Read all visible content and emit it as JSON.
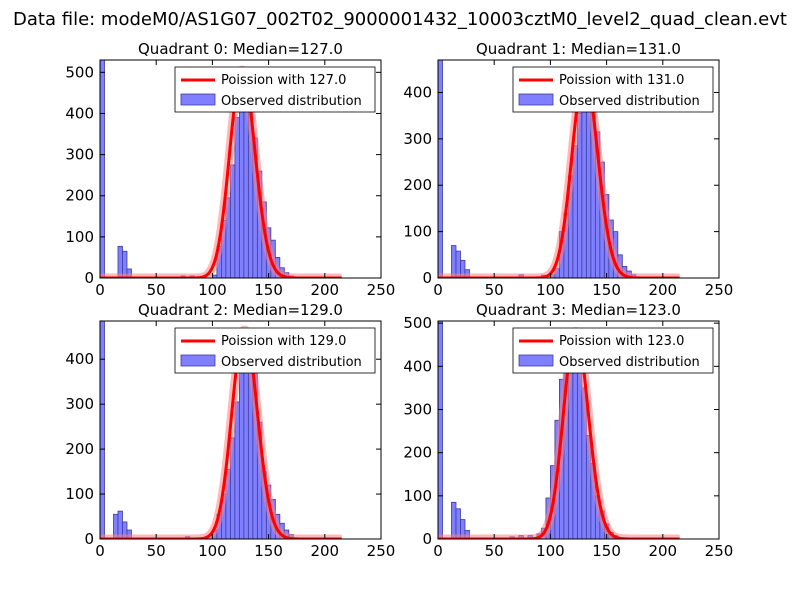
{
  "figure_title": "Data file: modeM0/AS1G07_002T02_9000001432_10003cztM0_level2_quad_clean.evt",
  "colors": {
    "bar_fill": "#7f7fff",
    "bar_edge": "#3c3ca0",
    "poisson": "#ff0000",
    "poisson_band": "#ff8080"
  },
  "chart_data": [
    {
      "type": "bar",
      "title": "Quadrant 0: Median=127.0",
      "legend": [
        "Poission with 127.0",
        "Observed distribution"
      ],
      "legend_position": "top-right",
      "xlim": [
        0,
        250
      ],
      "ylim": [
        0,
        530
      ],
      "xticks": [
        0,
        50,
        100,
        150,
        200,
        250
      ],
      "yticks": [
        0,
        100,
        200,
        300,
        400,
        500
      ],
      "median": 127.0,
      "bin_width": 4,
      "bins": [
        [
          0,
          530
        ],
        [
          16,
          77
        ],
        [
          20,
          65
        ],
        [
          24,
          22
        ],
        [
          72,
          5
        ],
        [
          80,
          5
        ],
        [
          100,
          7
        ],
        [
          104,
          77
        ],
        [
          108,
          140
        ],
        [
          112,
          195
        ],
        [
          116,
          275
        ],
        [
          120,
          390
        ],
        [
          124,
          480
        ],
        [
          128,
          505
        ],
        [
          132,
          440
        ],
        [
          136,
          340
        ],
        [
          140,
          260
        ],
        [
          144,
          185
        ],
        [
          148,
          122
        ],
        [
          152,
          92
        ],
        [
          156,
          50
        ],
        [
          160,
          25
        ],
        [
          164,
          13
        ],
        [
          168,
          5
        ],
        [
          172,
          2
        ]
      ]
    },
    {
      "type": "bar",
      "title": "Quadrant 1: Median=131.0",
      "legend": [
        "Poission with 131.0",
        "Observed distribution"
      ],
      "legend_position": "top-right",
      "xlim": [
        0,
        250
      ],
      "ylim": [
        0,
        470
      ],
      "xticks": [
        0,
        50,
        100,
        150,
        200,
        250
      ],
      "yticks": [
        0,
        100,
        200,
        300,
        400
      ],
      "median": 131.0,
      "bin_width": 4,
      "bins": [
        [
          0,
          470
        ],
        [
          12,
          70
        ],
        [
          16,
          58
        ],
        [
          20,
          38
        ],
        [
          24,
          18
        ],
        [
          72,
          7
        ],
        [
          92,
          6
        ],
        [
          100,
          7
        ],
        [
          104,
          20
        ],
        [
          108,
          100
        ],
        [
          112,
          140
        ],
        [
          116,
          220
        ],
        [
          120,
          285
        ],
        [
          124,
          355
        ],
        [
          128,
          420
        ],
        [
          132,
          440
        ],
        [
          136,
          410
        ],
        [
          140,
          315
        ],
        [
          144,
          250
        ],
        [
          148,
          180
        ],
        [
          152,
          125
        ],
        [
          156,
          100
        ],
        [
          160,
          50
        ],
        [
          164,
          25
        ],
        [
          168,
          15
        ],
        [
          172,
          7
        ]
      ]
    },
    {
      "type": "bar",
      "title": "Quadrant 2: Median=129.0",
      "legend": [
        "Poission with 129.0",
        "Observed distribution"
      ],
      "legend_position": "top-right",
      "xlim": [
        0,
        250
      ],
      "ylim": [
        0,
        485
      ],
      "xticks": [
        0,
        50,
        100,
        150,
        200,
        250
      ],
      "yticks": [
        0,
        100,
        200,
        300,
        400
      ],
      "median": 129.0,
      "bin_width": 4,
      "bins": [
        [
          0,
          485
        ],
        [
          12,
          55
        ],
        [
          16,
          62
        ],
        [
          20,
          38
        ],
        [
          24,
          20
        ],
        [
          76,
          5
        ],
        [
          96,
          7
        ],
        [
          100,
          20
        ],
        [
          104,
          55
        ],
        [
          108,
          100
        ],
        [
          112,
          155
        ],
        [
          116,
          225
        ],
        [
          120,
          305
        ],
        [
          124,
          405
        ],
        [
          128,
          465
        ],
        [
          132,
          445
        ],
        [
          136,
          375
        ],
        [
          140,
          260
        ],
        [
          144,
          150
        ],
        [
          148,
          120
        ],
        [
          152,
          88
        ],
        [
          156,
          55
        ],
        [
          160,
          35
        ],
        [
          164,
          20
        ],
        [
          168,
          10
        ]
      ]
    },
    {
      "type": "bar",
      "title": "Quadrant 3: Median=123.0",
      "legend": [
        "Poission with 123.0",
        "Observed distribution"
      ],
      "legend_position": "top-right",
      "xlim": [
        0,
        250
      ],
      "ylim": [
        0,
        505
      ],
      "xticks": [
        0,
        50,
        100,
        150,
        200,
        250
      ],
      "yticks": [
        0,
        100,
        200,
        300,
        400,
        500
      ],
      "median": 123.0,
      "bin_width": 4,
      "bins": [
        [
          0,
          505
        ],
        [
          12,
          85
        ],
        [
          16,
          70
        ],
        [
          20,
          45
        ],
        [
          24,
          20
        ],
        [
          64,
          5
        ],
        [
          72,
          8
        ],
        [
          80,
          8
        ],
        [
          88,
          12
        ],
        [
          92,
          25
        ],
        [
          96,
          95
        ],
        [
          100,
          170
        ],
        [
          104,
          275
        ],
        [
          108,
          370
        ],
        [
          112,
          435
        ],
        [
          116,
          465
        ],
        [
          120,
          480
        ],
        [
          124,
          420
        ],
        [
          128,
          350
        ],
        [
          132,
          240
        ],
        [
          136,
          175
        ],
        [
          140,
          100
        ],
        [
          144,
          65
        ],
        [
          148,
          35
        ],
        [
          152,
          15
        ],
        [
          156,
          8
        ]
      ]
    }
  ]
}
